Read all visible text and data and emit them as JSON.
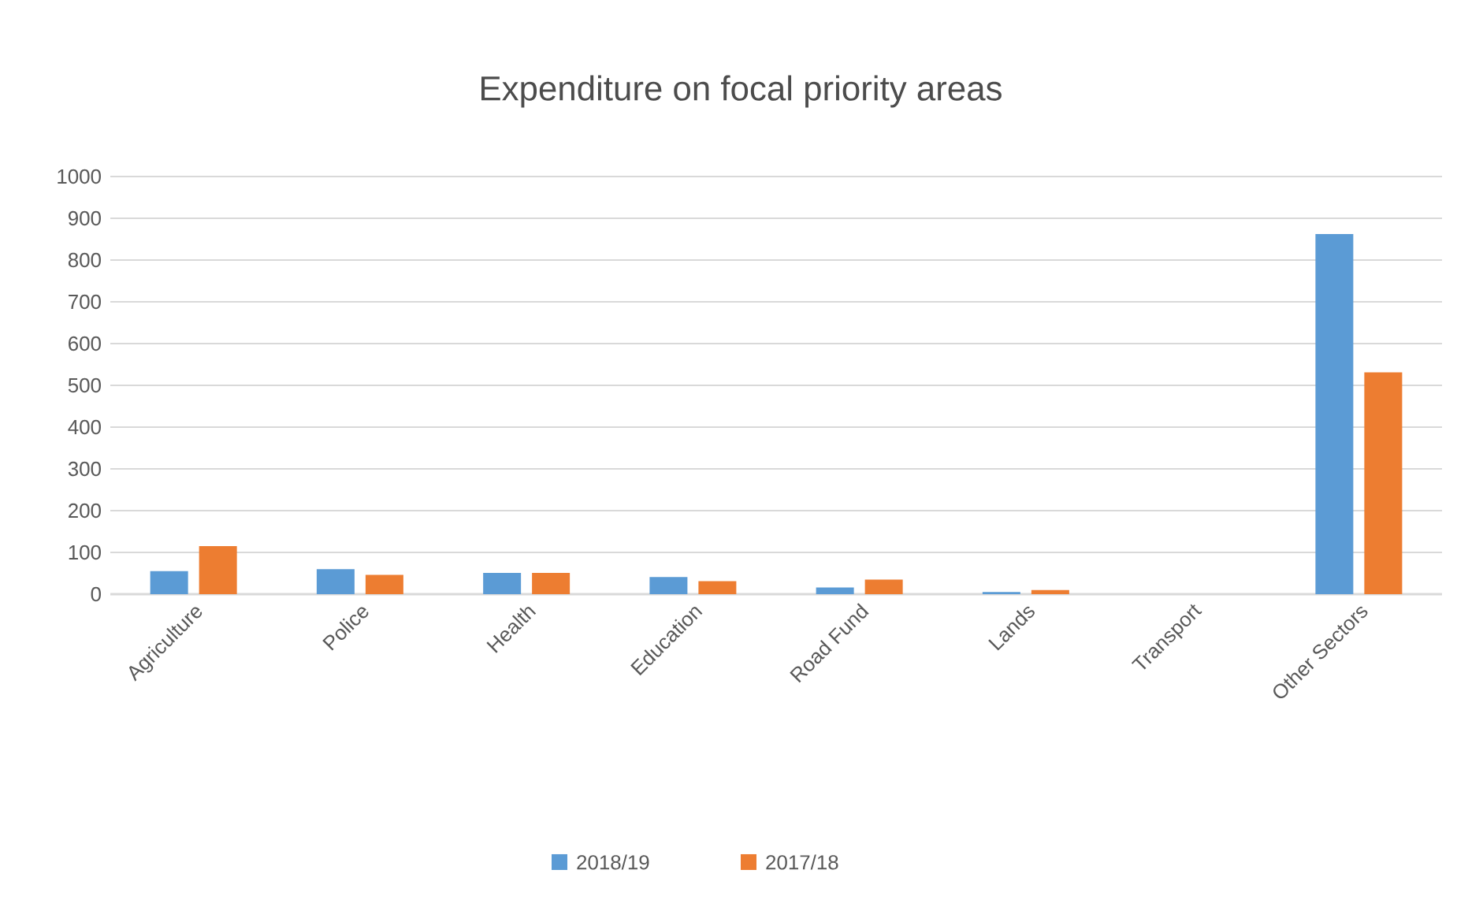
{
  "chart_data": {
    "type": "bar",
    "title": "Expenditure on focal priority areas",
    "categories": [
      "Agriculture",
      "Police",
      "Health",
      "Education",
      "Road Fund",
      "Lands",
      "Transport",
      "Other Sectors"
    ],
    "series": [
      {
        "name": "2018/19",
        "color": "#5b9bd5",
        "values": [
          55,
          60,
          51,
          41,
          16,
          5,
          0,
          862
        ]
      },
      {
        "name": "2017/18",
        "color": "#ed7d31",
        "values": [
          115,
          46,
          51,
          31,
          35,
          10,
          0,
          531
        ]
      }
    ],
    "ylim": [
      0,
      1000
    ],
    "yticks": [
      0,
      100,
      200,
      300,
      400,
      500,
      600,
      700,
      800,
      900,
      1000
    ],
    "grid": "y",
    "legend": "bottom"
  }
}
